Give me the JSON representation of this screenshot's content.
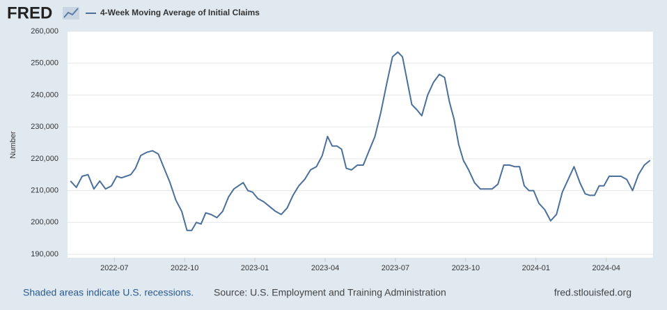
{
  "header": {
    "logo": "FRED"
  },
  "chart_data": {
    "type": "line",
    "y_label": "Number",
    "x": [
      "2022-05",
      "2022-05",
      "2022-05",
      "2022-05",
      "2022-06",
      "2022-06",
      "2022-06",
      "2022-06",
      "2022-07",
      "2022-07",
      "2022-07",
      "2022-07",
      "2022-07",
      "2022-08",
      "2022-08",
      "2022-08",
      "2022-08",
      "2022-09",
      "2022-09",
      "2022-09",
      "2022-09",
      "2022-10",
      "2022-10",
      "2022-10",
      "2022-10",
      "2022-10",
      "2022-11",
      "2022-11",
      "2022-11",
      "2022-11",
      "2022-12",
      "2022-12",
      "2022-12",
      "2022-12",
      "2022-12",
      "2023-01",
      "2023-01",
      "2023-01",
      "2023-01",
      "2023-02",
      "2023-02",
      "2023-02",
      "2023-02",
      "2023-03",
      "2023-03",
      "2023-03",
      "2023-03",
      "2023-04",
      "2023-04",
      "2023-04",
      "2023-04",
      "2023-04",
      "2023-05",
      "2023-05",
      "2023-05",
      "2023-05",
      "2023-06",
      "2023-06",
      "2023-06",
      "2023-06",
      "2023-07",
      "2023-07",
      "2023-07",
      "2023-07",
      "2023-07",
      "2023-08",
      "2023-08",
      "2023-08",
      "2023-08",
      "2023-09",
      "2023-09",
      "2023-09",
      "2023-09",
      "2023-09",
      "2023-10",
      "2023-10",
      "2023-10",
      "2023-10",
      "2023-11",
      "2023-11",
      "2023-11",
      "2023-11",
      "2023-12",
      "2023-12",
      "2023-12",
      "2023-12",
      "2023-12",
      "2024-01",
      "2024-01",
      "2024-01",
      "2024-01",
      "2024-02",
      "2024-02",
      "2024-02",
      "2024-02",
      "2024-03",
      "2024-03",
      "2024-03",
      "2024-03",
      "2024-03",
      "2024-04",
      "2024-04",
      "2024-04",
      "2024-04",
      "2024-05",
      "2024-05",
      "2024-05",
      "2024-05"
    ],
    "series": [
      {
        "name": "4-Week Moving Average of Initial Claims",
        "color": "#4a6f9a",
        "values": [
          213000,
          211000,
          214500,
          215000,
          210500,
          213000,
          210500,
          211500,
          214500,
          214000,
          214500,
          215000,
          217000,
          221000,
          222000,
          222500,
          221500,
          217000,
          212500,
          207000,
          203500,
          197500,
          197500,
          200000,
          199500,
          203000,
          202500,
          201500,
          203500,
          208000,
          210500,
          211500,
          212500,
          210000,
          209500,
          207500,
          206500,
          205000,
          203500,
          202500,
          204500,
          208500,
          211500,
          213500,
          216500,
          217500,
          221000,
          227000,
          224000,
          224000,
          223000,
          217000,
          216500,
          218000,
          218000,
          222500,
          227000,
          234500,
          243500,
          252000,
          253500,
          252000,
          244500,
          237000,
          235500,
          233500,
          240000,
          244000,
          246500,
          245500,
          238000,
          232500,
          224500,
          219500,
          216500,
          212500,
          210500,
          210500,
          210500,
          212000,
          218000,
          218000,
          217500,
          217500,
          211500,
          210000,
          210000,
          206000,
          204000,
          200500,
          202500,
          209500,
          213500,
          217500,
          212500,
          209000,
          208500,
          208500,
          211500,
          211500,
          214500,
          214500,
          214500,
          213500,
          210000,
          215000,
          218000,
          219500
        ]
      }
    ],
    "xlim": [
      "2022-05",
      "2024-05"
    ],
    "xticks": [
      "2022-07",
      "2022-10",
      "2023-01",
      "2023-04",
      "2023-07",
      "2023-10",
      "2024-01",
      "2024-04"
    ],
    "ylim": [
      190000,
      260000
    ],
    "yticks": [
      {
        "value": 190000,
        "label": "190,000"
      },
      {
        "value": 200000,
        "label": "200,000"
      },
      {
        "value": 210000,
        "label": "210,000"
      },
      {
        "value": 220000,
        "label": "220,000"
      },
      {
        "value": 230000,
        "label": "230,000"
      },
      {
        "value": 240000,
        "label": "240,000"
      },
      {
        "value": 250000,
        "label": "250,000"
      },
      {
        "value": 260000,
        "label": "260,000"
      }
    ],
    "grid": true
  },
  "footer": {
    "recessions": "Shaded areas indicate U.S. recessions.",
    "source": "Source: U.S. Employment and Training Administration",
    "site": "fred.stlouisfed.org"
  }
}
